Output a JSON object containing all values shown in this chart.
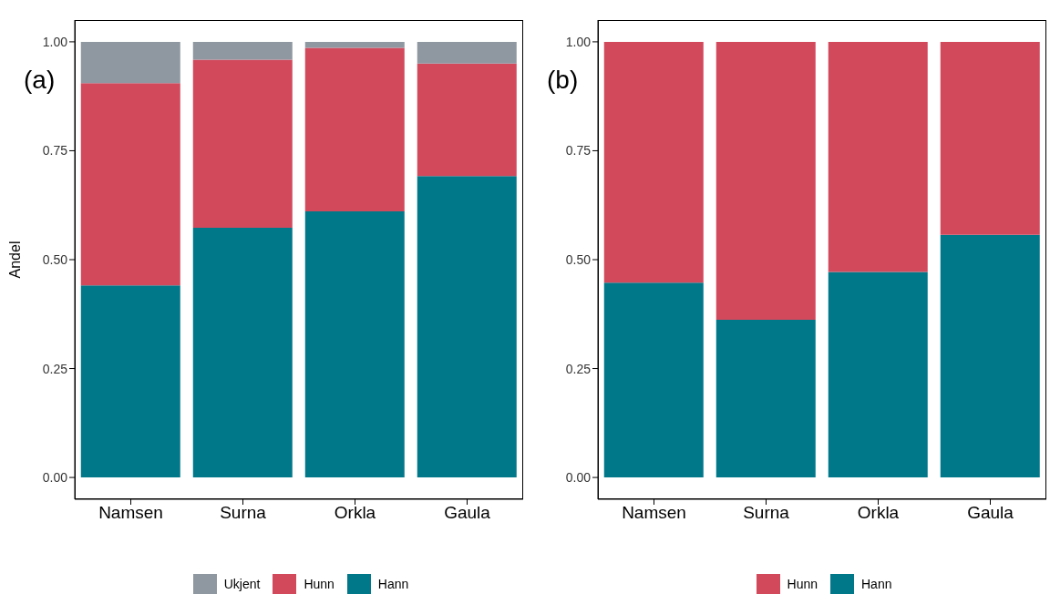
{
  "chart_data": [
    {
      "type": "bar",
      "stacked": true,
      "ylabel": "Andel",
      "annotations": [
        "(a)"
      ],
      "categories": [
        "Namsen",
        "Surna",
        "Orkla",
        "Gaula"
      ],
      "ylim": [
        -0.05,
        1.05
      ],
      "yticks": [
        {
          "value": 0,
          "label": "0.00"
        },
        {
          "value": 0.25,
          "label": "0.25"
        },
        {
          "value": 0.5,
          "label": "0.50"
        },
        {
          "value": 0.75,
          "label": "0.75"
        },
        {
          "value": 1,
          "label": "1.00"
        }
      ],
      "grid": false,
      "legend": "bottom",
      "series": [
        {
          "name": "Hann",
          "color": "#00788a",
          "values": [
            0.441,
            0.573,
            0.611,
            0.692
          ]
        },
        {
          "name": "Hunn",
          "color": "#d2495c",
          "values": [
            0.464,
            0.386,
            0.375,
            0.258
          ]
        },
        {
          "name": "Ukjent",
          "color": "#8f97a1",
          "values": [
            0.095,
            0.041,
            0.014,
            0.05
          ]
        }
      ]
    },
    {
      "type": "bar",
      "stacked": true,
      "annotations": [
        "(b)"
      ],
      "categories": [
        "Namsen",
        "Surna",
        "Orkla",
        "Gaula"
      ],
      "ylim": [
        -0.05,
        1.05
      ],
      "yticks": [
        {
          "value": 0,
          "label": "0.00"
        },
        {
          "value": 0.25,
          "label": "0.25"
        },
        {
          "value": 0.5,
          "label": "0.50"
        },
        {
          "value": 0.75,
          "label": "0.75"
        },
        {
          "value": 1,
          "label": "1.00"
        }
      ],
      "grid": false,
      "legend": "bottom",
      "series": [
        {
          "name": "Hann",
          "color": "#00788a",
          "values": [
            0.447,
            0.362,
            0.472,
            0.557
          ]
        },
        {
          "name": "Hunn",
          "color": "#d2495c",
          "values": [
            0.553,
            0.638,
            0.528,
            0.443
          ]
        }
      ]
    }
  ]
}
